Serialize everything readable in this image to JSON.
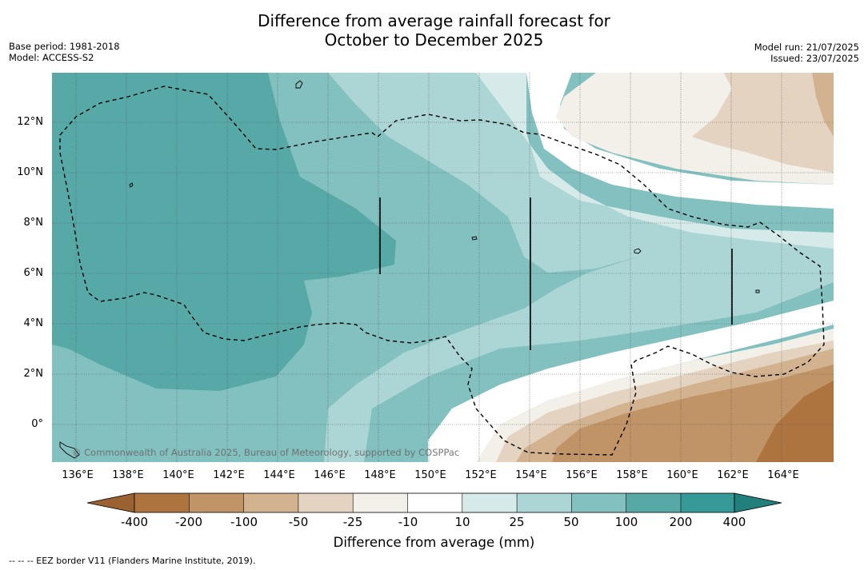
{
  "title_line1": "Difference from average rainfall forecast for",
  "title_line2": "October to December 2025",
  "base_period": "Base period: 1981-2018",
  "model": "Model: ACCESS-S2",
  "model_run": "Model run: 21/07/2025",
  "issued": "Issued: 23/07/2025",
  "copyright": "© Commonwealth of Australia 2025, Bureau of Meteorology, supported by COSPPac",
  "lat_labels": [
    "12°N",
    "10°N",
    "8°N",
    "6°N",
    "4°N",
    "2°N",
    "0°"
  ],
  "lon_labels": [
    "136°E",
    "138°E",
    "140°E",
    "142°E",
    "144°E",
    "146°E",
    "148°E",
    "150°E",
    "152°E",
    "154°E",
    "156°E",
    "158°E",
    "160°E",
    "162°E",
    "164°E"
  ],
  "colorbar": {
    "title": "Difference from average (mm)",
    "labels": [
      "-400",
      "-200",
      "-100",
      "-50",
      "-25",
      "-10",
      "10",
      "25",
      "50",
      "100",
      "200",
      "400"
    ],
    "colors": {
      "under": "#9a6230",
      "b1": "#ad7440",
      "b2": "#c19467",
      "b3": "#d3b38f",
      "b4": "#e4d3c1",
      "b5": "#f3efe9",
      "b6": "#ffffff",
      "b7": "#d6eae9",
      "b8": "#acd6d5",
      "b9": "#83c1c0",
      "b10": "#57a9a8",
      "b11": "#369b98",
      "over": "#217f7c"
    }
  },
  "footnote": "--  --  -- EEZ border V11 (Flanders Marine Institute, 2019)."
}
